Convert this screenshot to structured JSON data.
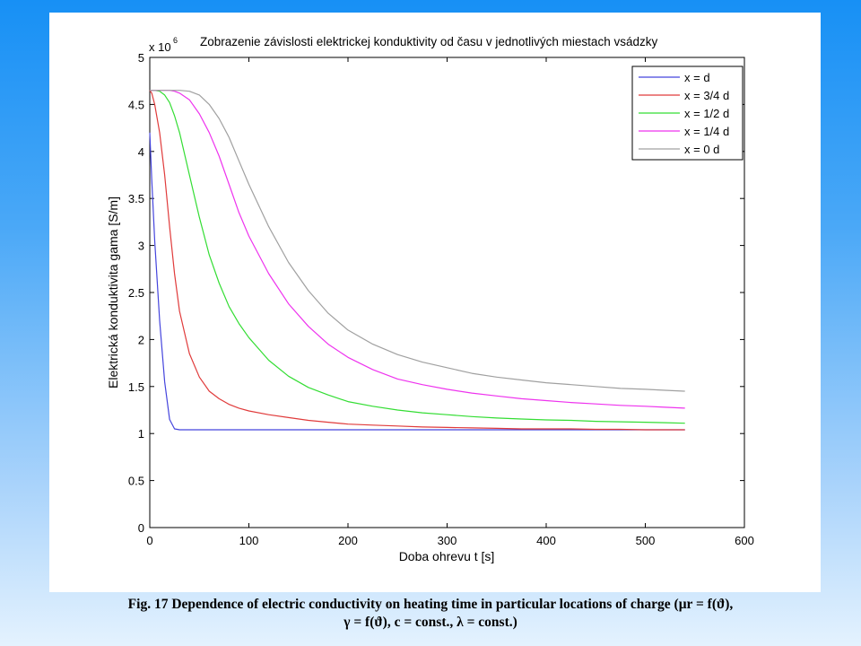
{
  "chart_data": {
    "type": "line",
    "title": "Zobrazenie závislosti elektrickej konduktivity od času v jednotlivých miestach vsádzky",
    "xlabel": "Doba ohrevu t [s]",
    "ylabel": "Elektrická konduktivita gama [S/m]",
    "y_multiplier_label": "x 10",
    "y_multiplier_exponent": "6",
    "xlim": [
      0,
      600
    ],
    "ylim": [
      0,
      5
    ],
    "xticks": [
      0,
      100,
      200,
      300,
      400,
      500,
      600
    ],
    "yticks": [
      0,
      0.5,
      1,
      1.5,
      2,
      2.5,
      3,
      3.5,
      4,
      4.5,
      5
    ],
    "xtick_labels": [
      "0",
      "100",
      "200",
      "300",
      "400",
      "500",
      "600"
    ],
    "ytick_labels": [
      "0",
      "0.5",
      "1",
      "1.5",
      "2",
      "2.5",
      "3",
      "3.5",
      "4",
      "4.5",
      "5"
    ],
    "grid": false,
    "legend_position": "top-right",
    "x": [
      0,
      2,
      5,
      10,
      15,
      20,
      25,
      30,
      40,
      50,
      60,
      70,
      80,
      90,
      100,
      120,
      140,
      160,
      180,
      200,
      225,
      250,
      275,
      300,
      325,
      350,
      375,
      400,
      425,
      450,
      475,
      500,
      520,
      540
    ],
    "series": [
      {
        "name": "x = d",
        "color": "#4444dd",
        "values": [
          4.2,
          3.7,
          3.05,
          2.2,
          1.55,
          1.15,
          1.05,
          1.04,
          1.04,
          1.04,
          1.04,
          1.04,
          1.04,
          1.04,
          1.04,
          1.04,
          1.04,
          1.04,
          1.04,
          1.04,
          1.04,
          1.04,
          1.04,
          1.04,
          1.04,
          1.04,
          1.04,
          1.04,
          1.04,
          1.04,
          1.04,
          1.04,
          1.04,
          1.04
        ]
      },
      {
        "name": "x = 3/4 d",
        "color": "#e03b3b",
        "values": [
          4.65,
          4.62,
          4.5,
          4.2,
          3.75,
          3.2,
          2.7,
          2.3,
          1.85,
          1.6,
          1.45,
          1.37,
          1.31,
          1.27,
          1.24,
          1.2,
          1.17,
          1.14,
          1.12,
          1.1,
          1.09,
          1.08,
          1.07,
          1.065,
          1.06,
          1.055,
          1.05,
          1.05,
          1.05,
          1.045,
          1.045,
          1.04,
          1.04,
          1.04
        ]
      },
      {
        "name": "x = 1/2 d",
        "color": "#33dd33",
        "values": [
          4.65,
          4.65,
          4.65,
          4.64,
          4.6,
          4.52,
          4.38,
          4.2,
          3.75,
          3.3,
          2.9,
          2.6,
          2.35,
          2.17,
          2.02,
          1.78,
          1.61,
          1.49,
          1.41,
          1.34,
          1.29,
          1.25,
          1.22,
          1.2,
          1.18,
          1.165,
          1.155,
          1.145,
          1.14,
          1.13,
          1.125,
          1.12,
          1.115,
          1.11
        ]
      },
      {
        "name": "x = 1/4 d",
        "color": "#ee33ee",
        "values": [
          4.65,
          4.65,
          4.65,
          4.65,
          4.65,
          4.65,
          4.64,
          4.62,
          4.55,
          4.4,
          4.2,
          3.95,
          3.65,
          3.35,
          3.1,
          2.7,
          2.38,
          2.14,
          1.95,
          1.81,
          1.68,
          1.58,
          1.52,
          1.47,
          1.43,
          1.4,
          1.37,
          1.35,
          1.33,
          1.315,
          1.3,
          1.29,
          1.28,
          1.27
        ]
      },
      {
        "name": "x = 0 d",
        "color": "#a0a0a0",
        "values": [
          4.65,
          4.65,
          4.65,
          4.65,
          4.65,
          4.65,
          4.65,
          4.65,
          4.64,
          4.6,
          4.5,
          4.35,
          4.15,
          3.9,
          3.65,
          3.2,
          2.82,
          2.52,
          2.28,
          2.1,
          1.95,
          1.84,
          1.76,
          1.7,
          1.64,
          1.6,
          1.57,
          1.54,
          1.52,
          1.5,
          1.48,
          1.47,
          1.46,
          1.45
        ]
      }
    ]
  },
  "caption": {
    "line1": "Fig. 17 Dependence of electric conductivity on heating time in particular locations of charge (μr = f(ϑ),",
    "line2": "γ = f(ϑ), c = const., λ = const.)"
  }
}
